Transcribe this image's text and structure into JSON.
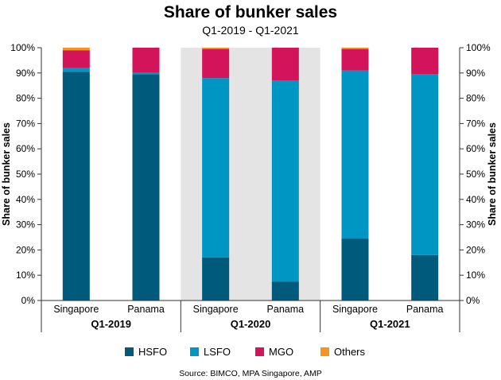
{
  "chart_data": {
    "type": "bar",
    "stacked": true,
    "title": "Share of bunker sales",
    "subtitle": "Q1-2019 - Q1-2021",
    "ylabel": "Share of bunker sales",
    "ylim": [
      0,
      100
    ],
    "yticks": [
      "0%",
      "10%",
      "20%",
      "30%",
      "40%",
      "50%",
      "60%",
      "70%",
      "80%",
      "90%",
      "100%"
    ],
    "groups": [
      {
        "label": "Q1-2019",
        "shaded": false
      },
      {
        "label": "Q1-2020",
        "shaded": true
      },
      {
        "label": "Q1-2021",
        "shaded": false
      }
    ],
    "categories": [
      "Singapore",
      "Panama",
      "Singapore",
      "Panama",
      "Singapore",
      "Panama"
    ],
    "category_group": [
      0,
      0,
      1,
      1,
      2,
      2
    ],
    "series": [
      {
        "name": "HSFO",
        "color": "#005a7c",
        "values": [
          90.5,
          89.5,
          17,
          7.5,
          24.5,
          18
        ]
      },
      {
        "name": "LSFO",
        "color": "#0096c4",
        "values": [
          1.5,
          0.5,
          71,
          79.5,
          66.5,
          71.5
        ]
      },
      {
        "name": "MGO",
        "color": "#d4145a",
        "values": [
          7,
          10,
          11.5,
          13,
          8.5,
          10.5
        ]
      },
      {
        "name": "Others",
        "color": "#f7941d",
        "values": [
          1,
          0,
          0.5,
          0,
          0.5,
          0
        ]
      }
    ],
    "legend_position": "bottom",
    "source": "Source: BIMCO, MPA Singapore, AMP",
    "colors": {
      "shade": "#e4e4e4",
      "axis": "#333333",
      "text": "#1a1a1a"
    }
  }
}
